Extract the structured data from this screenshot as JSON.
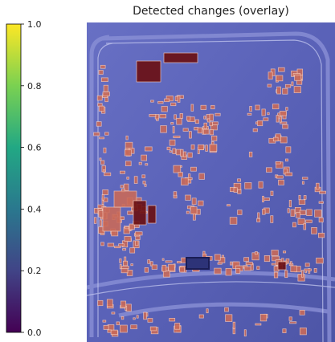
{
  "chart_data": {
    "type": "heatmap",
    "title": "Detected changes (overlay)",
    "colormap": "viridis",
    "colorbar": {
      "range": [
        0.0,
        1.0
      ],
      "ticks": [
        {
          "value": 0.0,
          "label": "0.0"
        },
        {
          "value": 0.2,
          "label": "0.2"
        },
        {
          "value": 0.4,
          "label": "0.4"
        },
        {
          "value": 0.6,
          "label": "0.6"
        },
        {
          "value": 0.8,
          "label": "0.8"
        },
        {
          "value": 1.0,
          "label": "1.0"
        }
      ],
      "stops": [
        "#440154",
        "#414487",
        "#2a788e",
        "#22a884",
        "#7ad151",
        "#fde725"
      ]
    },
    "overlay": {
      "background_color": "#5a62b8",
      "change_fill": "#c96a5a",
      "strong_change_fill": "#6b0f12",
      "outline_color": "#f2c7b8",
      "grid": false
    }
  }
}
